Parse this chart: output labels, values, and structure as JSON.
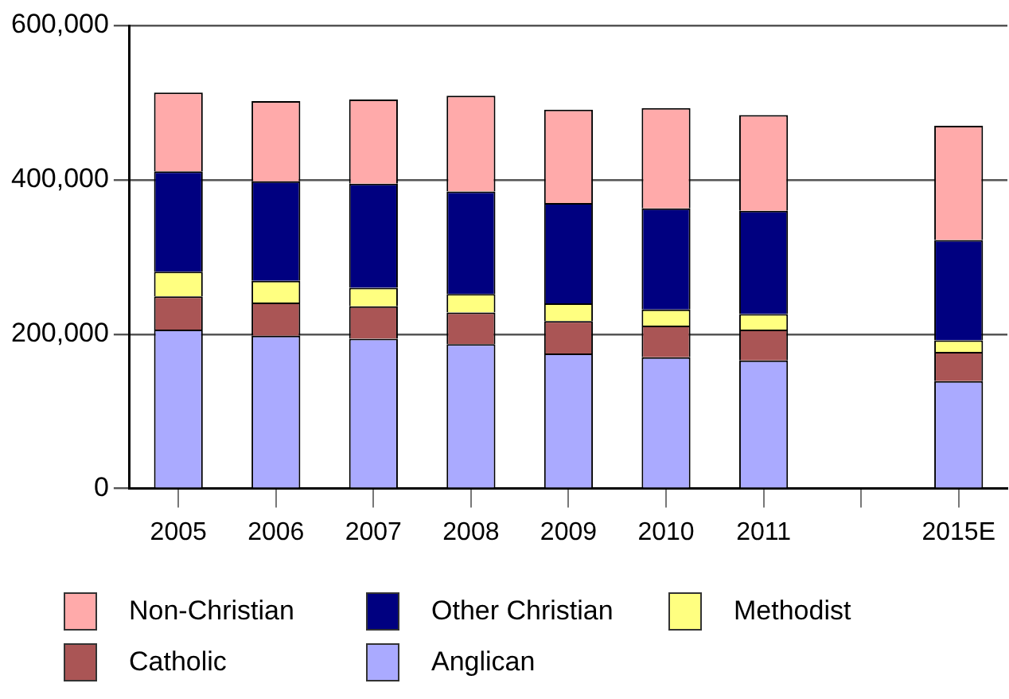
{
  "chart_data": {
    "type": "bar",
    "stacked": true,
    "categories": [
      "2005",
      "2006",
      "2007",
      "2008",
      "2009",
      "2010",
      "2011",
      null,
      "2015E"
    ],
    "series": [
      {
        "name": "Anglican",
        "color": "#aaaaff",
        "values": [
          206000,
          198000,
          194000,
          187000,
          175000,
          170000,
          166000,
          null,
          139000
        ]
      },
      {
        "name": "Catholic",
        "color": "#aa5555",
        "values": [
          43000,
          43000,
          42000,
          41000,
          42000,
          41000,
          40000,
          null,
          38000
        ]
      },
      {
        "name": "Methodist",
        "color": "#ffff80",
        "values": [
          32000,
          28000,
          24000,
          24000,
          23000,
          21000,
          20000,
          null,
          15000
        ]
      },
      {
        "name": "Other Christian",
        "color": "#000080",
        "values": [
          130000,
          129000,
          135000,
          133000,
          130000,
          131000,
          134000,
          null,
          130000
        ]
      },
      {
        "name": "Non-Christian",
        "color": "#ffaaaa",
        "values": [
          102000,
          104000,
          109000,
          124000,
          121000,
          130000,
          124000,
          null,
          148000
        ]
      }
    ],
    "ylim": [
      0,
      600000
    ],
    "yticks": [
      {
        "value": 0,
        "label": "0"
      },
      {
        "value": 200000,
        "label": "200,000"
      },
      {
        "value": 400000,
        "label": "400,000"
      },
      {
        "value": 600000,
        "label": "600,000"
      }
    ],
    "grid": "y",
    "legend": "bottom"
  }
}
